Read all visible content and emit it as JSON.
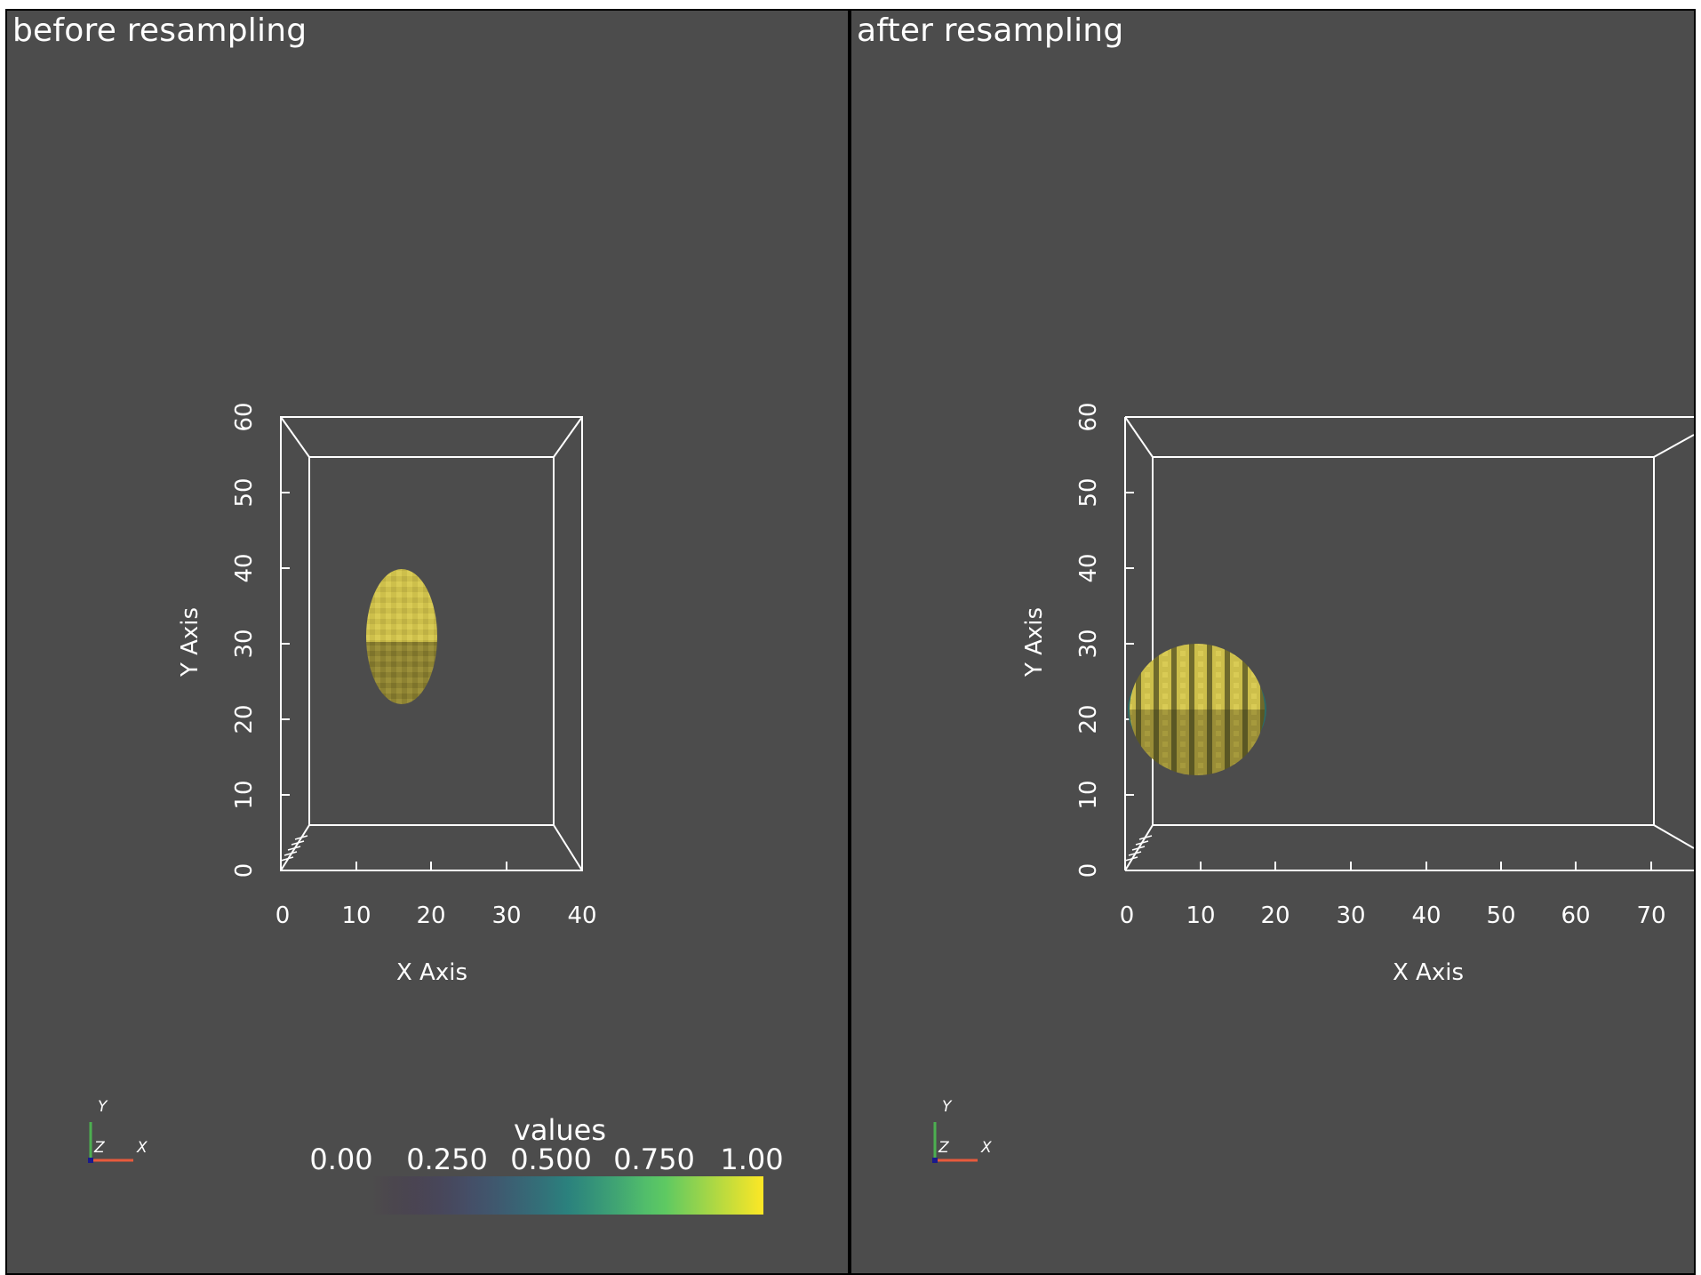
{
  "views": [
    {
      "title": "before resampling",
      "x_axis": {
        "label": "X Axis",
        "ticks": [
          "0",
          "10",
          "20",
          "30",
          "40"
        ]
      },
      "y_axis": {
        "label": "Y Axis",
        "ticks": [
          "0",
          "10",
          "20",
          "30",
          "40",
          "50",
          "60"
        ]
      },
      "orientation": {
        "y": "Y",
        "z": "Z",
        "x": "X"
      }
    },
    {
      "title": "after resampling",
      "x_axis": {
        "label": "X Axis",
        "ticks": [
          "0",
          "10",
          "20",
          "30",
          "40",
          "50",
          "60",
          "70"
        ]
      },
      "y_axis": {
        "label": "Y Axis",
        "ticks": [
          "0",
          "10",
          "20",
          "30",
          "40",
          "50",
          "60"
        ]
      },
      "orientation": {
        "y": "Y",
        "z": "Z",
        "x": "X"
      }
    }
  ],
  "scalar_bar": {
    "title": "values",
    "ticks": [
      "0.00",
      "0.250",
      "0.500",
      "0.750",
      "1.00"
    ],
    "colormap": [
      "#440154",
      "#3b528b",
      "#21918c",
      "#5ec962",
      "#fde725"
    ]
  },
  "colors": {
    "background": "#4c4c4c",
    "voxel_light": "#cdbf4b",
    "voxel_dark": "#8d8232",
    "voxel_edge": "#2c6a66",
    "axis_x": "#e85a3c",
    "axis_y": "#4caf50"
  }
}
